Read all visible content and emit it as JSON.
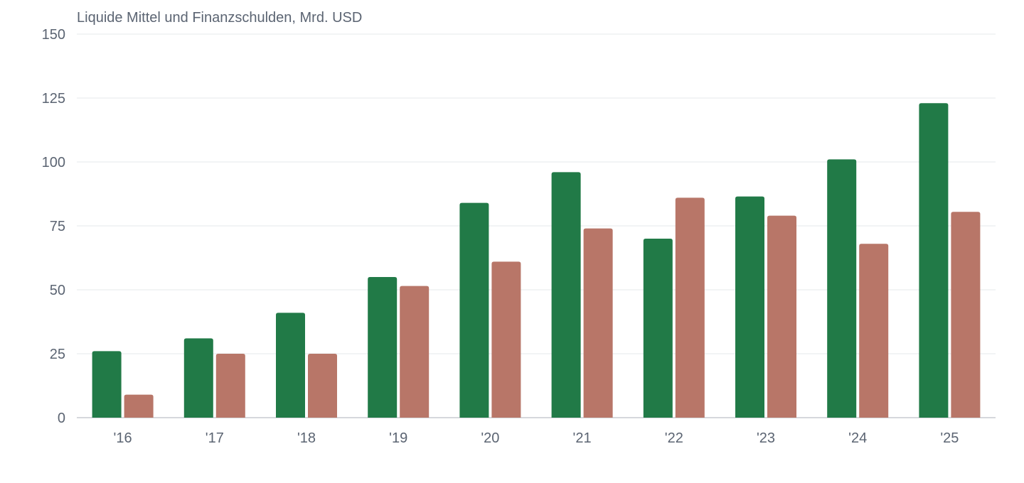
{
  "chart_data": {
    "type": "bar",
    "title": "Liquide Mittel und Finanzschulden, Mrd. USD",
    "categories": [
      "'16",
      "'17",
      "'18",
      "'19",
      "'20",
      "'21",
      "'22",
      "'23",
      "'24",
      "'25"
    ],
    "series": [
      {
        "values": [
          26,
          31,
          41,
          55,
          84,
          96,
          70,
          86.5,
          101,
          123
        ],
        "color": "#217a47"
      },
      {
        "values": [
          9,
          25,
          25,
          51.5,
          61,
          74,
          86,
          79,
          68,
          80.5
        ],
        "color": "#b87668"
      }
    ],
    "ylim": [
      0,
      150
    ],
    "yticks": [
      0,
      25,
      50,
      75,
      100,
      125,
      150
    ],
    "grid": true,
    "legend": "none"
  }
}
